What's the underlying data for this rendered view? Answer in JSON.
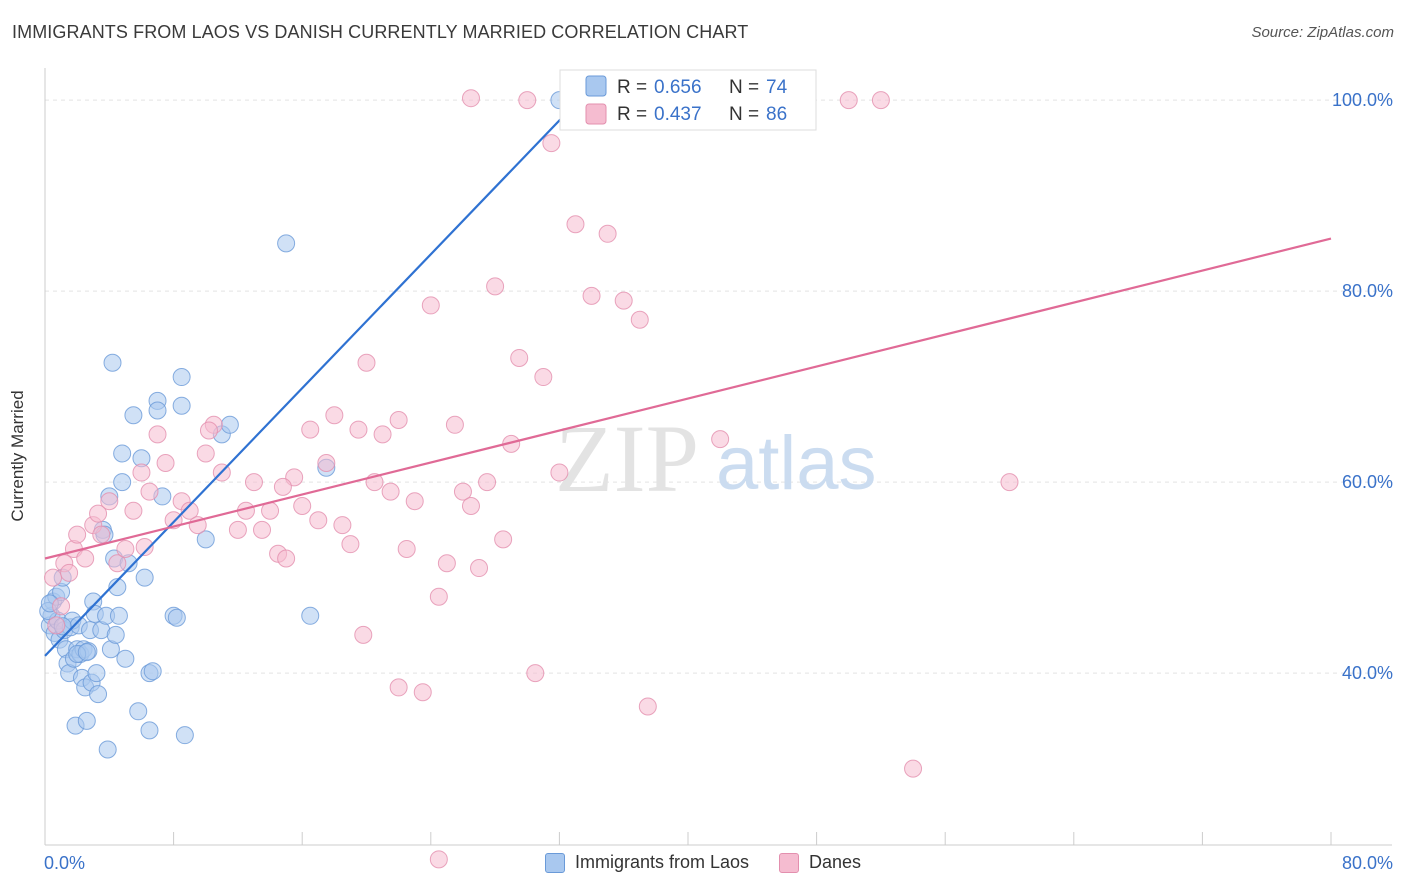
{
  "header": {
    "title": "IMMIGRANTS FROM LAOS VS DANISH CURRENTLY MARRIED CORRELATION CHART",
    "source": "Source: ZipAtlas.com"
  },
  "watermark": {
    "zip": "ZIP",
    "atlas": "atlas"
  },
  "colors": {
    "blue_fill": "#a9c8ef",
    "blue_stroke": "#6a9ad8",
    "blue_line": "#2f72d2",
    "pink_fill": "#f5bcd0",
    "pink_stroke": "#e38fae",
    "pink_line": "#e06a96",
    "value_text": "#3a72c9"
  },
  "stats_legend": [
    {
      "r_label": "R =",
      "r_value": "0.656",
      "n_label": "N =",
      "n_value": "74"
    },
    {
      "r_label": "R =",
      "r_value": "0.437",
      "n_label": "N =",
      "n_value": "86"
    }
  ],
  "bottom_legend": [
    {
      "label": "Immigrants from Laos"
    },
    {
      "label": "Danes"
    }
  ],
  "chart_data": {
    "type": "scatter",
    "title": "IMMIGRANTS FROM LAOS VS DANISH CURRENTLY MARRIED CORRELATION CHART",
    "xlabel": "",
    "ylabel": "Currently Married",
    "xlim": [
      0,
      80
    ],
    "ylim": [
      22,
      102
    ],
    "x_tick_labels": [
      "0.0%",
      "80.0%"
    ],
    "y_ticks": [
      40,
      60,
      80,
      100
    ],
    "y_tick_labels": [
      "40.0%",
      "60.0%",
      "80.0%",
      "100.0%"
    ],
    "grid": true,
    "legend_position": "top-center",
    "series": [
      {
        "name": "Immigrants from Laos",
        "color": "#a9c8ef",
        "trend": {
          "x": [
            0,
            33.5
          ],
          "y": [
            41.8,
            100.5
          ]
        },
        "points": [
          [
            0.3,
            45.0
          ],
          [
            0.4,
            46.0
          ],
          [
            0.5,
            47.5
          ],
          [
            0.6,
            44.2
          ],
          [
            0.7,
            48.0
          ],
          [
            0.8,
            45.5
          ],
          [
            0.9,
            43.5
          ],
          [
            1.0,
            48.5
          ],
          [
            1.1,
            50.0
          ],
          [
            1.2,
            44.5
          ],
          [
            1.3,
            42.5
          ],
          [
            1.4,
            41.0
          ],
          [
            1.5,
            40.0
          ],
          [
            1.6,
            44.8
          ],
          [
            1.7,
            45.5
          ],
          [
            1.8,
            41.5
          ],
          [
            1.9,
            34.5
          ],
          [
            2.0,
            42.5
          ],
          [
            2.1,
            45.0
          ],
          [
            2.2,
            42.0
          ],
          [
            2.3,
            39.5
          ],
          [
            2.4,
            42.5
          ],
          [
            2.5,
            38.5
          ],
          [
            2.6,
            35.0
          ],
          [
            2.7,
            42.3
          ],
          [
            2.8,
            44.5
          ],
          [
            2.9,
            39.0
          ],
          [
            3.0,
            47.5
          ],
          [
            3.1,
            46.2
          ],
          [
            3.2,
            40.0
          ],
          [
            3.3,
            37.8
          ],
          [
            3.5,
            44.5
          ],
          [
            3.6,
            55.0
          ],
          [
            3.7,
            54.5
          ],
          [
            3.8,
            46.0
          ],
          [
            3.9,
            32.0
          ],
          [
            4.0,
            58.5
          ],
          [
            4.1,
            42.5
          ],
          [
            4.2,
            72.5
          ],
          [
            4.3,
            52.0
          ],
          [
            4.4,
            44.0
          ],
          [
            4.5,
            49.0
          ],
          [
            4.6,
            46.0
          ],
          [
            4.8,
            63.0
          ],
          [
            4.8,
            60.0
          ],
          [
            5.0,
            41.5
          ],
          [
            5.2,
            51.5
          ],
          [
            5.5,
            67.0
          ],
          [
            5.8,
            36.0
          ],
          [
            6.0,
            62.5
          ],
          [
            6.2,
            50.0
          ],
          [
            6.5,
            34.0
          ],
          [
            6.5,
            40.0
          ],
          [
            7.0,
            68.5
          ],
          [
            7.0,
            67.5
          ],
          [
            7.3,
            58.5
          ],
          [
            8.0,
            46.0
          ],
          [
            8.2,
            45.8
          ],
          [
            8.5,
            71.0
          ],
          [
            8.5,
            68.0
          ],
          [
            8.7,
            33.5
          ],
          [
            10.0,
            54.0
          ],
          [
            11.0,
            65.0
          ],
          [
            11.5,
            66.0
          ],
          [
            15.0,
            85.0
          ],
          [
            16.5,
            46.0
          ],
          [
            17.5,
            61.5
          ],
          [
            32.0,
            100.0
          ],
          [
            0.2,
            46.5
          ],
          [
            0.3,
            47.3
          ],
          [
            2.0,
            42.0
          ],
          [
            2.6,
            42.2
          ],
          [
            6.7,
            40.2
          ],
          [
            1.1,
            44.9
          ]
        ]
      },
      {
        "name": "Danes",
        "color": "#f5bcd0",
        "trend": {
          "x": [
            0,
            80
          ],
          "y": [
            52.0,
            85.5
          ]
        },
        "points": [
          [
            0.5,
            50.0
          ],
          [
            0.7,
            45.0
          ],
          [
            1.0,
            47.0
          ],
          [
            1.2,
            51.5
          ],
          [
            1.5,
            50.5
          ],
          [
            1.8,
            53.0
          ],
          [
            2.0,
            54.5
          ],
          [
            2.5,
            52.0
          ],
          [
            3.0,
            55.5
          ],
          [
            3.5,
            54.5
          ],
          [
            4.0,
            58.0
          ],
          [
            4.5,
            51.5
          ],
          [
            5.0,
            53.0
          ],
          [
            5.5,
            57.0
          ],
          [
            6.0,
            61.0
          ],
          [
            6.5,
            59.0
          ],
          [
            7.0,
            65.0
          ],
          [
            7.5,
            62.0
          ],
          [
            8.0,
            56.0
          ],
          [
            8.5,
            58.0
          ],
          [
            9.0,
            57.0
          ],
          [
            9.5,
            55.5
          ],
          [
            10.0,
            63.0
          ],
          [
            10.5,
            66.0
          ],
          [
            11.0,
            61.0
          ],
          [
            12.0,
            55.0
          ],
          [
            12.5,
            57.0
          ],
          [
            13.0,
            60.0
          ],
          [
            13.5,
            55.0
          ],
          [
            14.0,
            57.0
          ],
          [
            14.5,
            52.5
          ],
          [
            15.0,
            52.0
          ],
          [
            15.5,
            60.5
          ],
          [
            16.0,
            57.5
          ],
          [
            16.5,
            65.5
          ],
          [
            17.0,
            56.0
          ],
          [
            17.5,
            62.0
          ],
          [
            18.0,
            67.0
          ],
          [
            18.5,
            55.5
          ],
          [
            19.0,
            53.5
          ],
          [
            19.5,
            65.5
          ],
          [
            20.0,
            72.5
          ],
          [
            20.5,
            60.0
          ],
          [
            21.0,
            65.0
          ],
          [
            21.5,
            59.0
          ],
          [
            22.0,
            66.5
          ],
          [
            22.5,
            53.0
          ],
          [
            23.0,
            58.0
          ],
          [
            23.5,
            38.0
          ],
          [
            24.0,
            78.5
          ],
          [
            24.5,
            48.0
          ],
          [
            25.0,
            51.5
          ],
          [
            25.5,
            66.0
          ],
          [
            26.0,
            59.0
          ],
          [
            26.5,
            57.5
          ],
          [
            27.0,
            51.0
          ],
          [
            27.5,
            60.0
          ],
          [
            28.0,
            80.5
          ],
          [
            28.5,
            54.0
          ],
          [
            29.0,
            64.0
          ],
          [
            29.5,
            73.0
          ],
          [
            30.0,
            100.0
          ],
          [
            30.5,
            40.0
          ],
          [
            31.0,
            71.0
          ],
          [
            31.5,
            95.5
          ],
          [
            32.0,
            61.0
          ],
          [
            33.0,
            87.0
          ],
          [
            34.0,
            79.5
          ],
          [
            35.0,
            86.0
          ],
          [
            36.0,
            79.0
          ],
          [
            37.0,
            77.0
          ],
          [
            37.5,
            36.5
          ],
          [
            40.0,
            100.0
          ],
          [
            42.0,
            64.5
          ],
          [
            50.0,
            100.0
          ],
          [
            52.0,
            100.0
          ],
          [
            54.0,
            30.0
          ],
          [
            60.0,
            60.0
          ],
          [
            10.2,
            65.4
          ],
          [
            19.8,
            44.0
          ],
          [
            22.0,
            38.5
          ],
          [
            24.5,
            20.5
          ],
          [
            26.5,
            100.2
          ],
          [
            14.8,
            59.5
          ],
          [
            3.3,
            56.7
          ],
          [
            6.2,
            53.2
          ]
        ]
      }
    ]
  }
}
